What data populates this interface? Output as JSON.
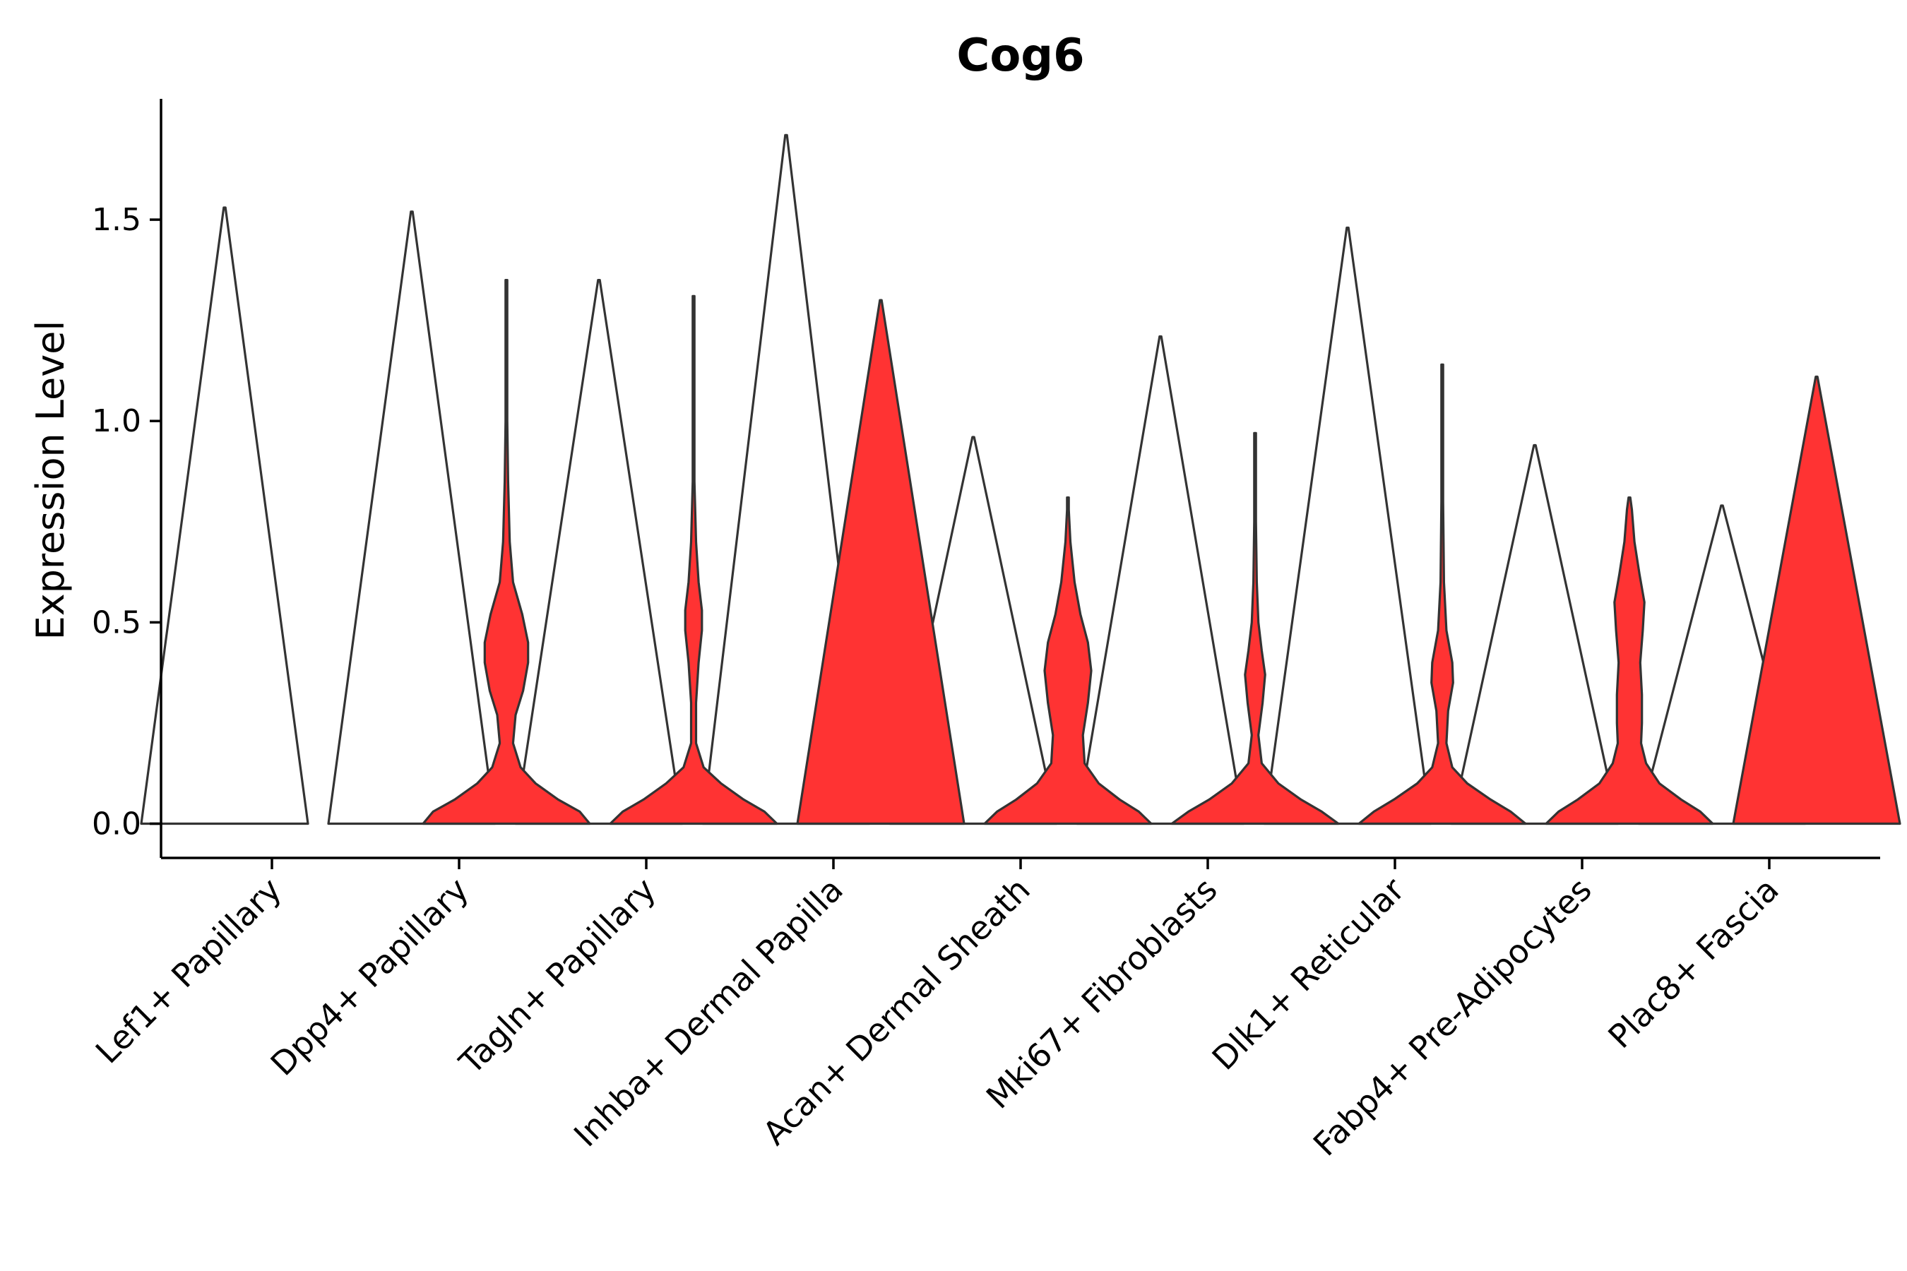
{
  "chart_data": {
    "type": "violin",
    "title": "Cog6",
    "xlabel": "",
    "ylabel": "Expression Level",
    "ylim": [
      -0.085,
      1.8
    ],
    "yticks": [
      0.0,
      0.5,
      1.0,
      1.5
    ],
    "ytick_labels": [
      "0.0",
      "0.5",
      "1.0",
      "1.5"
    ],
    "grid": false,
    "legend": "none",
    "categories": [
      "Lef1+ Papillary",
      "Dpp4+ Papillary",
      "Tagln+ Papillary",
      "Inhba+ Dermal Papilla",
      "Acan+ Dermal Sheath",
      "Mki67+ Fibroblasts",
      "Dlk1+ Reticular",
      "Fabp4+ Pre-Adipocytes",
      "Plac8+ Fascia"
    ],
    "series": [
      {
        "color": "#ffffff",
        "max": [
          1.53,
          1.52,
          1.35,
          1.71,
          0.96,
          1.21,
          1.48,
          0.94,
          0.79
        ],
        "profiles": [
          [
            [
              0.0,
              1.0
            ],
            [
              1.53,
              0.0
            ]
          ],
          [
            [
              0.0,
              1.0
            ],
            [
              1.52,
              0.0
            ]
          ],
          [
            [
              0.0,
              1.0
            ],
            [
              1.35,
              0.0
            ]
          ],
          [
            [
              0.0,
              1.0
            ],
            [
              1.71,
              0.0
            ]
          ],
          [
            [
              0.0,
              1.0
            ],
            [
              0.96,
              0.0
            ]
          ],
          [
            [
              0.0,
              1.0
            ],
            [
              1.21,
              0.0
            ]
          ],
          [
            [
              0.0,
              1.0
            ],
            [
              1.48,
              0.0
            ]
          ],
          [
            [
              0.0,
              1.0
            ],
            [
              0.94,
              0.0
            ]
          ],
          [
            [
              0.0,
              1.0
            ],
            [
              0.79,
              0.0
            ]
          ]
        ]
      },
      {
        "color": "#ff3333",
        "max": [
          null,
          1.35,
          1.31,
          1.3,
          0.81,
          0.97,
          1.14,
          0.81,
          1.11
        ],
        "profiles": [
          null,
          [
            [
              0.0,
              1.0
            ],
            [
              0.03,
              0.88
            ],
            [
              0.06,
              0.62
            ],
            [
              0.1,
              0.35
            ],
            [
              0.14,
              0.17
            ],
            [
              0.2,
              0.08
            ],
            [
              0.27,
              0.11
            ],
            [
              0.33,
              0.2
            ],
            [
              0.4,
              0.26
            ],
            [
              0.45,
              0.26
            ],
            [
              0.52,
              0.19
            ],
            [
              0.6,
              0.08
            ],
            [
              0.7,
              0.04
            ],
            [
              0.85,
              0.02
            ],
            [
              1.0,
              0.01
            ],
            [
              1.35,
              0.0
            ]
          ],
          [
            [
              0.0,
              1.0
            ],
            [
              0.03,
              0.85
            ],
            [
              0.06,
              0.6
            ],
            [
              0.1,
              0.33
            ],
            [
              0.14,
              0.12
            ],
            [
              0.2,
              0.03
            ],
            [
              0.3,
              0.03
            ],
            [
              0.4,
              0.06
            ],
            [
              0.48,
              0.1
            ],
            [
              0.53,
              0.1
            ],
            [
              0.6,
              0.06
            ],
            [
              0.7,
              0.03
            ],
            [
              0.85,
              0.01
            ],
            [
              1.0,
              0.005
            ],
            [
              1.31,
              0.0
            ]
          ],
          [
            [
              0.0,
              1.0
            ],
            [
              1.3,
              0.0
            ]
          ],
          [
            [
              0.0,
              1.0
            ],
            [
              0.03,
              0.85
            ],
            [
              0.06,
              0.62
            ],
            [
              0.1,
              0.37
            ],
            [
              0.15,
              0.2
            ],
            [
              0.22,
              0.18
            ],
            [
              0.3,
              0.24
            ],
            [
              0.38,
              0.28
            ],
            [
              0.45,
              0.24
            ],
            [
              0.52,
              0.15
            ],
            [
              0.6,
              0.08
            ],
            [
              0.7,
              0.03
            ],
            [
              0.78,
              0.01
            ],
            [
              0.81,
              0.0
            ]
          ],
          [
            [
              0.0,
              1.0
            ],
            [
              0.03,
              0.8
            ],
            [
              0.06,
              0.55
            ],
            [
              0.1,
              0.28
            ],
            [
              0.15,
              0.08
            ],
            [
              0.22,
              0.04
            ],
            [
              0.3,
              0.09
            ],
            [
              0.37,
              0.12
            ],
            [
              0.43,
              0.08
            ],
            [
              0.5,
              0.04
            ],
            [
              0.6,
              0.02
            ],
            [
              0.75,
              0.01
            ],
            [
              0.97,
              0.0
            ]
          ],
          [
            [
              0.0,
              1.0
            ],
            [
              0.03,
              0.82
            ],
            [
              0.06,
              0.58
            ],
            [
              0.1,
              0.3
            ],
            [
              0.14,
              0.12
            ],
            [
              0.2,
              0.05
            ],
            [
              0.28,
              0.07
            ],
            [
              0.35,
              0.13
            ],
            [
              0.4,
              0.12
            ],
            [
              0.48,
              0.05
            ],
            [
              0.6,
              0.02
            ],
            [
              0.8,
              0.01
            ],
            [
              1.14,
              0.0
            ]
          ],
          [
            [
              0.0,
              1.0
            ],
            [
              0.03,
              0.85
            ],
            [
              0.06,
              0.62
            ],
            [
              0.1,
              0.36
            ],
            [
              0.15,
              0.2
            ],
            [
              0.2,
              0.14
            ],
            [
              0.25,
              0.15
            ],
            [
              0.32,
              0.15
            ],
            [
              0.4,
              0.13
            ],
            [
              0.48,
              0.16
            ],
            [
              0.55,
              0.18
            ],
            [
              0.62,
              0.12
            ],
            [
              0.7,
              0.06
            ],
            [
              0.78,
              0.03
            ],
            [
              0.81,
              0.0
            ]
          ],
          [
            [
              0.0,
              1.0
            ],
            [
              1.11,
              0.0
            ]
          ]
        ]
      }
    ]
  }
}
